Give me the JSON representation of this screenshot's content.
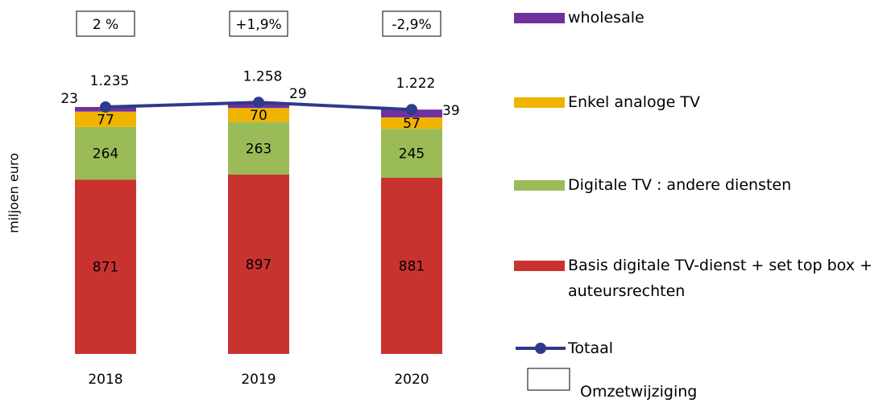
{
  "chart_data": {
    "type": "bar",
    "stacked": true,
    "y_label": "miljoen euro",
    "categories": [
      "2018",
      "2019",
      "2020"
    ],
    "ylim": [
      0,
      1400
    ],
    "series": [
      {
        "name": "Basis digitale TV-dienst + set top box + auteursrechten",
        "color": "#c9332f",
        "values": [
          871,
          897,
          881
        ]
      },
      {
        "name": "Digitale TV : andere diensten",
        "color": "#9bbb59",
        "values": [
          264,
          263,
          245
        ]
      },
      {
        "name": "Enkel analoge TV",
        "color": "#f0b400",
        "values": [
          77,
          70,
          57
        ]
      },
      {
        "name": "wholesale",
        "color": "#7030a0",
        "values": [
          23,
          29,
          39
        ]
      }
    ],
    "total": {
      "name": "Totaal",
      "color": "#2e3a8c",
      "values": [
        1235,
        1258,
        1222
      ],
      "value_labels": [
        "1.235",
        "1.258",
        "1.222"
      ]
    },
    "annotations": [
      "2 %",
      "+1,9%",
      "-2,9%"
    ],
    "annotation_legend": "Omzetwijziging"
  }
}
